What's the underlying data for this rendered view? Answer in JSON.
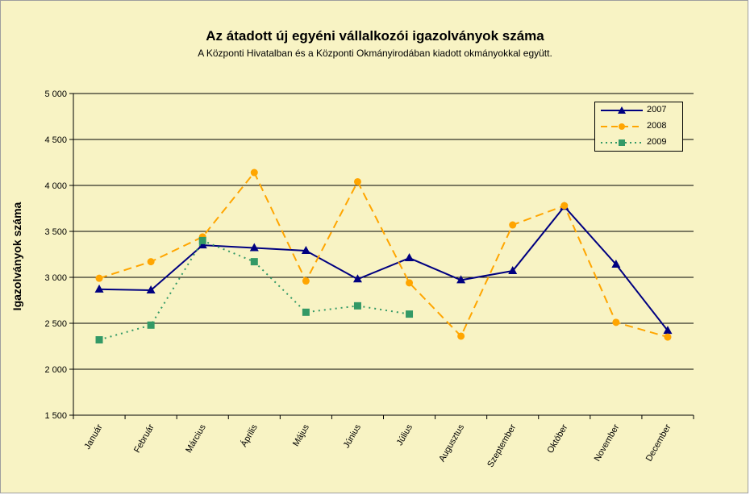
{
  "title": "Az átadott új egyéni vállalkozói  igazolványok száma",
  "subtitle": "A Központi Hivatalban és a Központi Okmányirodában kiadott okmányokkal együtt.",
  "chart_data": {
    "type": "line",
    "title": "Az átadott új egyéni vállalkozói  igazolványok száma",
    "subtitle": "A Központi Hivatalban és a Központi Okmányirodában kiadott okmányokkal együtt.",
    "xlabel": "",
    "ylabel": "Igazolványok száma",
    "ylim": [
      1500,
      5000
    ],
    "yticks": [
      1500,
      2000,
      2500,
      3000,
      3500,
      4000,
      4500,
      5000
    ],
    "ytick_labels": [
      "1 500",
      "2 000",
      "2 500",
      "3 000",
      "3 500",
      "4 000",
      "4 500",
      "5 000"
    ],
    "categories": [
      "Január",
      "Február",
      "Március",
      "Április",
      "Május",
      "Június",
      "Július",
      "Augusztus",
      "Szeptember",
      "Október",
      "November",
      "December"
    ],
    "grid": "horizontal",
    "legend_position": "top-right",
    "series": [
      {
        "name": "2007",
        "color": "#000080",
        "style": "solid",
        "marker": "triangle",
        "values": [
          2870,
          2860,
          3350,
          3320,
          3290,
          2980,
          3210,
          2970,
          3070,
          3770,
          3140,
          2420
        ]
      },
      {
        "name": "2008",
        "color": "#ffa500",
        "style": "dashed",
        "marker": "circle",
        "values": [
          2990,
          3170,
          3440,
          4140,
          2960,
          4040,
          2940,
          2360,
          3570,
          3780,
          2510,
          2350
        ]
      },
      {
        "name": "2009",
        "color": "#339966",
        "style": "dotted",
        "marker": "square",
        "values": [
          2320,
          2480,
          3400,
          3170,
          2620,
          2690,
          2600,
          null,
          null,
          null,
          null,
          null
        ]
      }
    ]
  }
}
